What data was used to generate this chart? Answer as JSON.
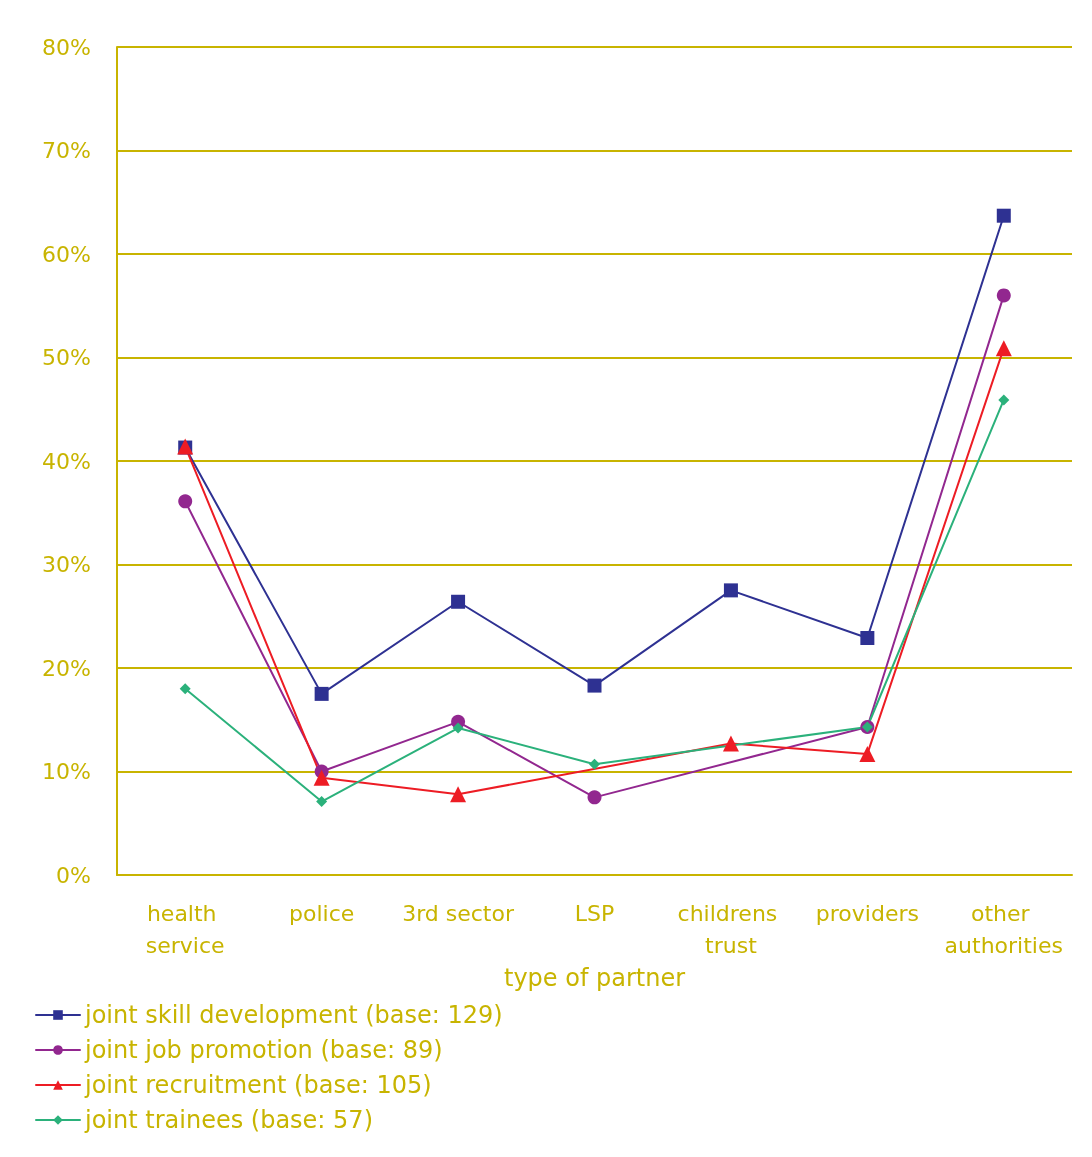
{
  "chart_data": {
    "type": "line",
    "xlabel": "type of partner",
    "categories": [
      "health service",
      "police",
      "3rd sector",
      "LSP",
      "childrens trust",
      "providers",
      "other authorities"
    ],
    "series": [
      {
        "name": "joint skill development (base: 129)",
        "color": "#2e3192",
        "marker": "square",
        "values": [
          41.3,
          17.5,
          26.4,
          18.3,
          27.5,
          22.9,
          63.7
        ]
      },
      {
        "name": "joint job promotion (base: 89)",
        "color": "#92278f",
        "marker": "circle",
        "values": [
          36.1,
          10.0,
          14.8,
          7.5,
          null,
          14.3,
          56.0
        ]
      },
      {
        "name": "joint recruitment (base: 105)",
        "color": "#ed1c24",
        "marker": "triangle",
        "values": [
          41.4,
          9.4,
          7.8,
          null,
          12.7,
          11.7,
          50.9
        ]
      },
      {
        "name": "joint trainees (base: 57)",
        "color": "#2bb17b",
        "marker": "diamond",
        "values": [
          18.0,
          7.1,
          14.2,
          10.7,
          null,
          14.3,
          45.9
        ]
      }
    ],
    "ylim": [
      0,
      80
    ],
    "yticks": [
      {
        "value": 0,
        "label": "0%"
      },
      {
        "value": 10,
        "label": "10%"
      },
      {
        "value": 20,
        "label": "20%"
      },
      {
        "value": 30,
        "label": "30%"
      },
      {
        "value": 40,
        "label": "40%"
      },
      {
        "value": 50,
        "label": "50%"
      },
      {
        "value": 60,
        "label": "60%"
      },
      {
        "value": 70,
        "label": "70%"
      },
      {
        "value": 80,
        "label": "80%"
      }
    ],
    "grid": "y",
    "legend": "bottom left",
    "line_style": "solid"
  }
}
